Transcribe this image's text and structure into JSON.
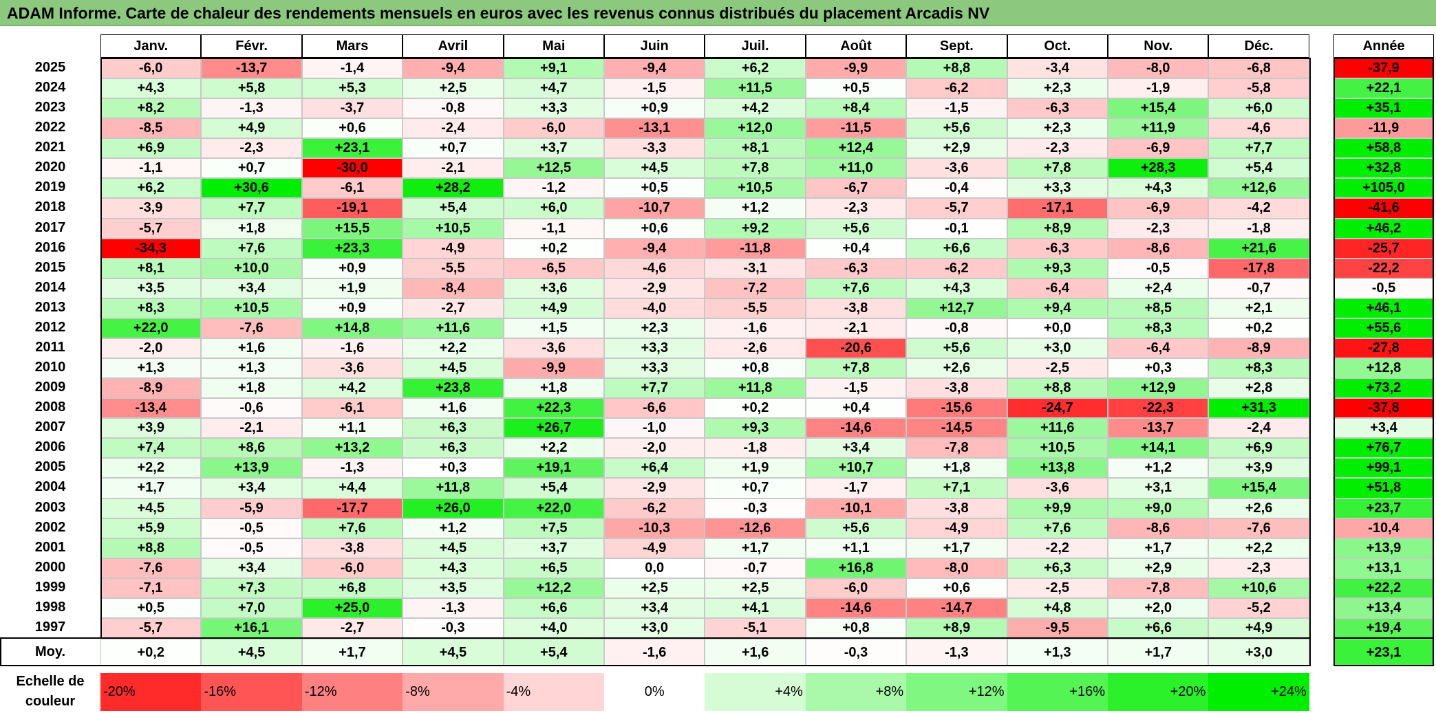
{
  "title": "ADAM Informe. Carte de chaleur des rendements mensuels en euros avec les revenus connus distribués du placement Arcadis NV",
  "chart_data": {
    "type": "heatmap",
    "title": "ADAM Informe. Carte de chaleur des rendements mensuels en euros avec les revenus connus distribués du placement Arcadis NV",
    "months": [
      "Janv.",
      "Févr.",
      "Mars",
      "Avril",
      "Mai",
      "Juin",
      "Juil.",
      "Août",
      "Sept.",
      "Oct.",
      "Nov.",
      "Déc."
    ],
    "year_header": "Année",
    "rows": [
      {
        "year": "2025",
        "values": [
          "-6,0",
          "-13,7",
          "-1,4",
          "-9,4",
          "+9,1",
          "-9,4",
          "+6,2",
          "-9,9",
          "+8,8",
          "-3,4",
          "-8,0",
          "-6,8"
        ],
        "total": "-37,9"
      },
      {
        "year": "2024",
        "values": [
          "+4,3",
          "+5,8",
          "+5,3",
          "+2,5",
          "+4,7",
          "-1,5",
          "+11,5",
          "+0,5",
          "-6,2",
          "+2,3",
          "-1,9",
          "-5,8"
        ],
        "total": "+22,1"
      },
      {
        "year": "2023",
        "values": [
          "+8,2",
          "-1,3",
          "-3,7",
          "-0,8",
          "+3,3",
          "+0,9",
          "+4,2",
          "+8,4",
          "-1,5",
          "-6,3",
          "+15,4",
          "+6,0"
        ],
        "total": "+35,1"
      },
      {
        "year": "2022",
        "values": [
          "-8,5",
          "+4,9",
          "+0,6",
          "-2,4",
          "-6,0",
          "-13,1",
          "+12,0",
          "-11,5",
          "+5,6",
          "+2,3",
          "+11,9",
          "-4,6"
        ],
        "total": "-11,9"
      },
      {
        "year": "2021",
        "values": [
          "+6,9",
          "-2,3",
          "+23,1",
          "+0,7",
          "+3,7",
          "-3,3",
          "+8,1",
          "+12,4",
          "+2,9",
          "-2,3",
          "-6,9",
          "+7,7"
        ],
        "total": "+58,8"
      },
      {
        "year": "2020",
        "values": [
          "-1,1",
          "+0,7",
          "-30,0",
          "-2,1",
          "+12,5",
          "+4,5",
          "+7,8",
          "+11,0",
          "-3,6",
          "+7,8",
          "+28,3",
          "+5,4"
        ],
        "total": "+32,8"
      },
      {
        "year": "2019",
        "values": [
          "+6,2",
          "+30,6",
          "-6,1",
          "+28,2",
          "-1,2",
          "+0,5",
          "+10,5",
          "-6,7",
          "-0,4",
          "+3,3",
          "+4,3",
          "+12,6"
        ],
        "total": "+105,0"
      },
      {
        "year": "2018",
        "values": [
          "-3,9",
          "+7,7",
          "-19,1",
          "+5,4",
          "+6,0",
          "-10,7",
          "+1,2",
          "-2,3",
          "-5,7",
          "-17,1",
          "-6,9",
          "-4,2"
        ],
        "total": "-41,6"
      },
      {
        "year": "2017",
        "values": [
          "-5,7",
          "+1,8",
          "+15,5",
          "+10,5",
          "-1,1",
          "+0,6",
          "+9,2",
          "+5,6",
          "-0,1",
          "+8,9",
          "-2,3",
          "-1,8"
        ],
        "total": "+46,2"
      },
      {
        "year": "2016",
        "values": [
          "-34,3",
          "+7,6",
          "+23,3",
          "-4,9",
          "+0,2",
          "-9,4",
          "-11,8",
          "+0,4",
          "+6,6",
          "-6,3",
          "-8,6",
          "+21,6"
        ],
        "total": "-25,7"
      },
      {
        "year": "2015",
        "values": [
          "+8,1",
          "+10,0",
          "+0,9",
          "-5,5",
          "-6,5",
          "-4,6",
          "-3,1",
          "-6,3",
          "-6,2",
          "+9,3",
          "-0,5",
          "-17,8"
        ],
        "total": "-22,2"
      },
      {
        "year": "2014",
        "values": [
          "+3,5",
          "+3,4",
          "+1,9",
          "-8,4",
          "+3,6",
          "-2,9",
          "-7,2",
          "+7,6",
          "+4,3",
          "-6,4",
          "+2,4",
          "-0,7"
        ],
        "total": "-0,5"
      },
      {
        "year": "2013",
        "values": [
          "+8,3",
          "+10,5",
          "+0,9",
          "-2,7",
          "+4,9",
          "-4,0",
          "-5,5",
          "-3,8",
          "+12,7",
          "+9,4",
          "+8,5",
          "+2,1"
        ],
        "total": "+46,1"
      },
      {
        "year": "2012",
        "values": [
          "+22,0",
          "-7,6",
          "+14,8",
          "+11,6",
          "+1,5",
          "+2,3",
          "-1,6",
          "-2,1",
          "-0,8",
          "+0,0",
          "+8,3",
          "+0,2"
        ],
        "total": "+55,6"
      },
      {
        "year": "2011",
        "values": [
          "-2,0",
          "+1,6",
          "-1,6",
          "+2,2",
          "-3,6",
          "+3,3",
          "-2,6",
          "-20,6",
          "+5,6",
          "+3,0",
          "-6,4",
          "-8,9"
        ],
        "total": "-27,8"
      },
      {
        "year": "2010",
        "values": [
          "+1,3",
          "+1,3",
          "-3,6",
          "+4,5",
          "-9,9",
          "+3,3",
          "+0,8",
          "+7,8",
          "+2,6",
          "-2,5",
          "+0,3",
          "+8,3"
        ],
        "total": "+12,8"
      },
      {
        "year": "2009",
        "values": [
          "-8,9",
          "+1,8",
          "+4,2",
          "+23,8",
          "+1,8",
          "+7,7",
          "+11,8",
          "-1,5",
          "-3,8",
          "+8,8",
          "+12,9",
          "+2,8"
        ],
        "total": "+73,2"
      },
      {
        "year": "2008",
        "values": [
          "-13,4",
          "-0,6",
          "-6,1",
          "+1,6",
          "+22,3",
          "-6,6",
          "+0,2",
          "+0,4",
          "-15,6",
          "-24,7",
          "-22,3",
          "+31,3"
        ],
        "total": "-37,8"
      },
      {
        "year": "2007",
        "values": [
          "+3,9",
          "-2,1",
          "+1,1",
          "+6,3",
          "+26,7",
          "-1,0",
          "+9,3",
          "-14,6",
          "-14,5",
          "+11,6",
          "-13,7",
          "-2,4"
        ],
        "total": "+3,4"
      },
      {
        "year": "2006",
        "values": [
          "+7,4",
          "+8,6",
          "+13,2",
          "+6,3",
          "+2,2",
          "-2,0",
          "-1,8",
          "+3,4",
          "-7,8",
          "+10,5",
          "+14,1",
          "+6,9"
        ],
        "total": "+76,7"
      },
      {
        "year": "2005",
        "values": [
          "+2,2",
          "+13,9",
          "-1,3",
          "+0,3",
          "+19,1",
          "+6,4",
          "+1,9",
          "+10,7",
          "+1,8",
          "+13,8",
          "+1,2",
          "+3,9"
        ],
        "total": "+99,1"
      },
      {
        "year": "2004",
        "values": [
          "+1,7",
          "+3,4",
          "+4,4",
          "+11,8",
          "+5,4",
          "-2,9",
          "+0,7",
          "-1,7",
          "+7,1",
          "-3,6",
          "+3,1",
          "+15,4"
        ],
        "total": "+51,8"
      },
      {
        "year": "2003",
        "values": [
          "+4,5",
          "-5,9",
          "-17,7",
          "+26,0",
          "+22,0",
          "-6,2",
          "-0,3",
          "-10,1",
          "-3,8",
          "+9,9",
          "+9,0",
          "+2,6"
        ],
        "total": "+23,7"
      },
      {
        "year": "2002",
        "values": [
          "+5,9",
          "-0,5",
          "+7,6",
          "+1,2",
          "+7,5",
          "-10,3",
          "-12,6",
          "+5,6",
          "-4,9",
          "+7,6",
          "-8,6",
          "-7,6"
        ],
        "total": "-10,4"
      },
      {
        "year": "2001",
        "values": [
          "+8,8",
          "-0,5",
          "-3,8",
          "+4,5",
          "+3,7",
          "-4,9",
          "+1,7",
          "+1,1",
          "+1,7",
          "-2,2",
          "+1,7",
          "+2,2"
        ],
        "total": "+13,9"
      },
      {
        "year": "2000",
        "values": [
          "-7,6",
          "+3,4",
          "-6,0",
          "+4,3",
          "+6,5",
          "0,0",
          "-0,7",
          "+16,8",
          "-8,0",
          "+6,3",
          "+2,9",
          "-2,3"
        ],
        "total": "+13,1"
      },
      {
        "year": "1999",
        "values": [
          "-7,1",
          "+7,3",
          "+6,8",
          "+3,5",
          "+12,2",
          "+2,5",
          "+2,5",
          "-6,0",
          "+0,6",
          "-2,5",
          "-7,8",
          "+10,6"
        ],
        "total": "+22,2"
      },
      {
        "year": "1998",
        "values": [
          "+0,5",
          "+7,0",
          "+25,0",
          "-1,3",
          "+6,6",
          "+3,4",
          "+4,1",
          "-14,6",
          "-14,7",
          "+4,8",
          "+2,0",
          "-5,2"
        ],
        "total": "+13,4"
      },
      {
        "year": "1997",
        "values": [
          "-5,7",
          "+16,1",
          "-2,7",
          "-0,3",
          "+4,0",
          "+3,0",
          "-5,1",
          "+0,8",
          "+8,9",
          "-9,5",
          "+6,6",
          "+4,9"
        ],
        "total": "+19,4"
      }
    ],
    "average": {
      "label": "Moy.",
      "values": [
        "+0,2",
        "+4,5",
        "+1,7",
        "+4,5",
        "+5,4",
        "-1,6",
        "+1,6",
        "-0,3",
        "-1,3",
        "+1,3",
        "+1,7",
        "+3,0"
      ],
      "total": "+23,1"
    },
    "scale": {
      "label": "Echelle de couleur",
      "steps": [
        "-20%",
        "-16%",
        "-12%",
        "-8%",
        "-4%",
        "0%",
        "+4%",
        "+8%",
        "+12%",
        "+16%",
        "+20%",
        "+24%"
      ]
    },
    "colors": {
      "negative_max": "#ff0000",
      "neutral": "#ffffff",
      "positive_max": "#00ee00",
      "title_bar": "#8cc97e"
    }
  }
}
